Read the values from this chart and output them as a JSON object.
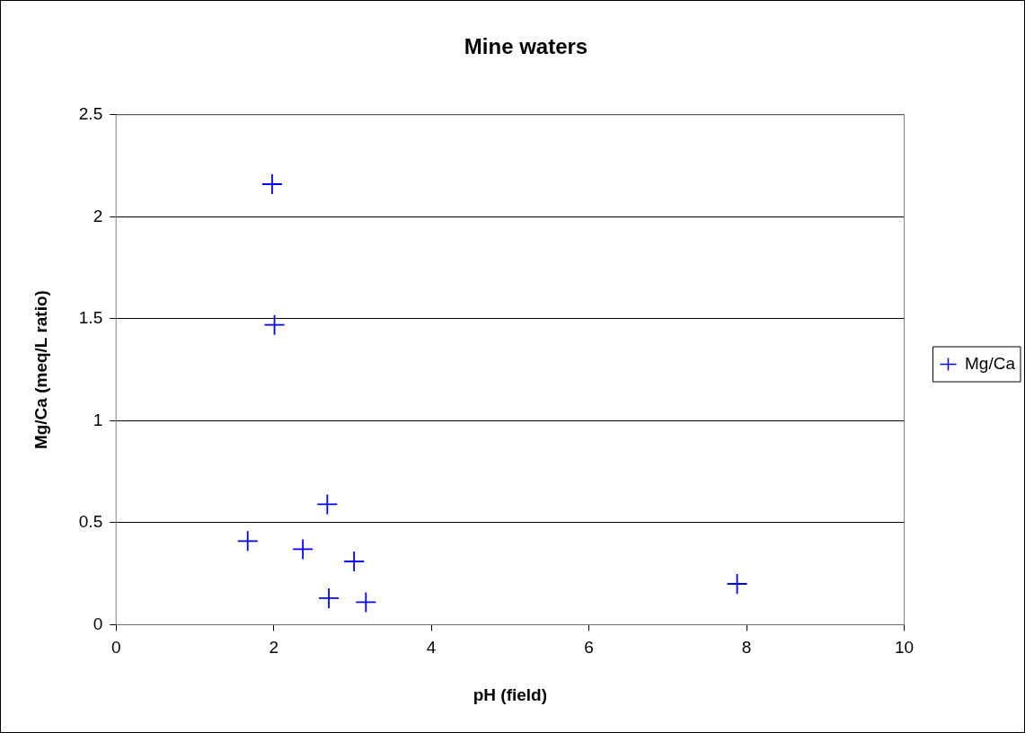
{
  "chart_data": {
    "type": "scatter",
    "title": "Mine waters",
    "xlabel": "pH (field)",
    "ylabel": "Mg/Ca (meq/L ratio)",
    "xlim": [
      0,
      10
    ],
    "xticks": [
      0,
      2,
      4,
      6,
      8,
      10
    ],
    "ylim": [
      0,
      2.5
    ],
    "yticks": [
      0,
      0.5,
      1,
      1.5,
      2,
      2.5
    ],
    "grid": "y",
    "legend": "right",
    "marker": "cross",
    "series": [
      {
        "name": "Mg/Ca",
        "color": "#0000ff",
        "x": [
          1.98,
          2.01,
          1.67,
          2.37,
          2.68,
          2.7,
          3.02,
          3.17,
          7.88
        ],
        "values": [
          2.16,
          1.47,
          0.41,
          0.37,
          0.59,
          0.13,
          0.31,
          0.11,
          0.2
        ]
      }
    ]
  }
}
